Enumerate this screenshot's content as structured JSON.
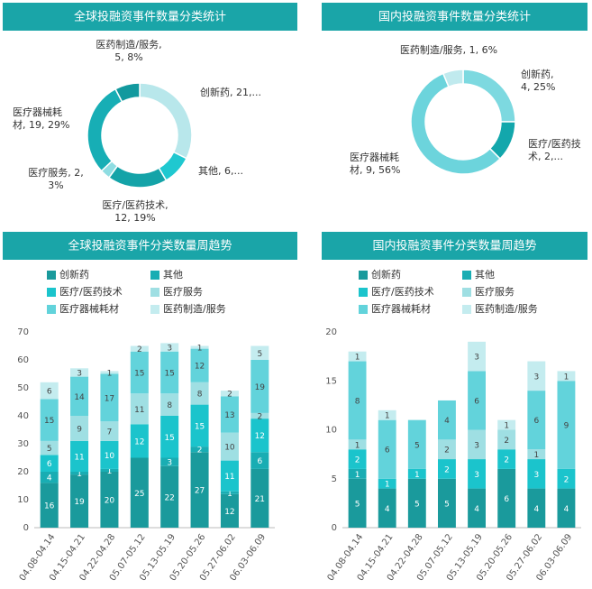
{
  "chart_data": [
    {
      "type": "donut",
      "title": "全球投融资事件数量分类统计",
      "values": [
        21,
        6,
        12,
        2,
        19,
        5
      ],
      "value_labels": [
        [
          "创新药, 21,..."
        ],
        [
          "其他, 6,..."
        ],
        [
          "医疗/医药技术,",
          "12, 19%"
        ],
        [
          "医疗服务, 2,",
          "3%"
        ],
        [
          "医疗器械耗",
          "材, 19, 29%"
        ],
        [
          "医药制造/服务,",
          "5, 8%"
        ]
      ],
      "colors": [
        "#b8e7eb",
        "#1fc8d0",
        "#14a3a8",
        "#8fdde2",
        "#17aeb5",
        "#12999e"
      ]
    },
    {
      "type": "donut",
      "title": "国内投融资事件数量分类统计",
      "values": [
        4,
        2,
        9,
        1
      ],
      "value_labels": [
        [
          "创新药,",
          "4, 25%"
        ],
        [
          "医疗/医药技",
          "术, 2,..."
        ],
        [
          "医疗器械耗",
          "材, 9, 56%"
        ],
        [
          "医药制造/服务, 1, 6%"
        ]
      ],
      "colors": [
        "#7dd9e0",
        "#13a7ac",
        "#6cd4dc",
        "#c0eaee"
      ]
    },
    {
      "type": "stacked_bar",
      "title": "全球投融资事件分类数量周趋势",
      "categories": [
        "04.08-04.14",
        "04.15-04.21",
        "04.22-04.28",
        "05.07-05.12",
        "05.13-05.19",
        "05.20-05.26",
        "05.27-06.02",
        "06.03-06.09"
      ],
      "series": [
        {
          "name": "创新药",
          "color": "#1a9a9c",
          "values": [
            16,
            19,
            20,
            25,
            22,
            27,
            12,
            21
          ]
        },
        {
          "name": "其他",
          "color": "#19adb3",
          "values": [
            4,
            1,
            1,
            null,
            3,
            2,
            1,
            6
          ]
        },
        {
          "name": "医疗/医药技术",
          "color": "#1bc4cc",
          "values": [
            6,
            11,
            10,
            12,
            15,
            15,
            11,
            12
          ]
        },
        {
          "name": "医疗服务",
          "color": "#9fdfe3",
          "values": [
            5,
            9,
            7,
            11,
            8,
            8,
            10,
            2
          ]
        },
        {
          "name": "医疗器械耗材",
          "color": "#62d3db",
          "values": [
            15,
            14,
            17,
            15,
            15,
            12,
            13,
            19
          ]
        },
        {
          "name": "医药制造/服务",
          "color": "#c4ecef",
          "values": [
            6,
            3,
            1,
            2,
            3,
            1,
            2,
            5
          ]
        }
      ],
      "ylim": [
        0,
        70
      ],
      "yticks": [
        0,
        10,
        20,
        30,
        40,
        50,
        60,
        70
      ]
    },
    {
      "type": "stacked_bar",
      "title": "国内投融资事件分类数量周趋势",
      "categories": [
        "04.08-04.14",
        "04.15-04.21",
        "04.22-04.28",
        "05.07-05.12",
        "05.13-05.19",
        "05.20-05.26",
        "05.27-06.02",
        "06.03-06.09"
      ],
      "series": [
        {
          "name": "创新药",
          "color": "#1a9a9c",
          "values": [
            5,
            4,
            5,
            5,
            4,
            6,
            4,
            4
          ]
        },
        {
          "name": "其他",
          "color": "#19adb3",
          "values": [
            1,
            null,
            null,
            null,
            null,
            null,
            null,
            null
          ]
        },
        {
          "name": "医疗/医药技术",
          "color": "#1bc4cc",
          "values": [
            2,
            1,
            1,
            2,
            3,
            2,
            3,
            2
          ]
        },
        {
          "name": "医疗服务",
          "color": "#9fdfe3",
          "values": [
            1,
            null,
            null,
            2,
            3,
            2,
            1,
            null
          ]
        },
        {
          "name": "医疗器械耗材",
          "color": "#62d3db",
          "values": [
            8,
            6,
            5,
            4,
            6,
            null,
            6,
            9
          ]
        },
        {
          "name": "医药制造/服务",
          "color": "#c4ecef",
          "values": [
            1,
            1,
            null,
            null,
            3,
            1,
            3,
            1
          ]
        }
      ],
      "ylim": [
        0,
        20
      ],
      "yticks": [
        0,
        5,
        10,
        15,
        20
      ]
    }
  ]
}
